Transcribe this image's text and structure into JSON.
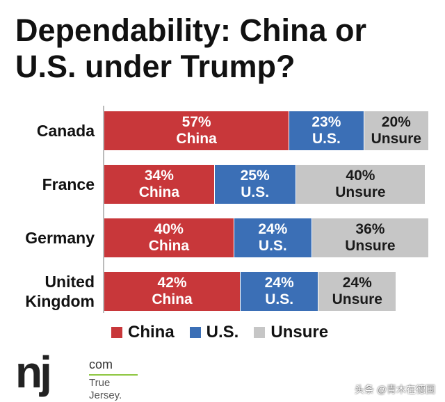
{
  "chart_data": {
    "type": "stacked-bar",
    "orientation": "horizontal",
    "title": "Dependability: China or U.S. under Trump?",
    "categories": [
      "Canada",
      "France",
      "Germany",
      "United Kingdom"
    ],
    "xlim": [
      0,
      100
    ],
    "series": [
      {
        "name": "China",
        "color": "#c8373a",
        "label_color": "#ffffff",
        "values": [
          57,
          34,
          40,
          42
        ],
        "value_labels": [
          "57%",
          "34%",
          "40%",
          "42%"
        ]
      },
      {
        "name": "U.S.",
        "color": "#3b6fb6",
        "label_color": "#ffffff",
        "values": [
          23,
          25,
          24,
          24
        ],
        "value_labels": [
          "23%",
          "25%",
          "24%",
          "24%"
        ]
      },
      {
        "name": "Unsure",
        "color": "#c6c6c6",
        "label_color": "#1a1a1a",
        "values": [
          20,
          40,
          36,
          24
        ],
        "value_labels": [
          "20%",
          "40%",
          "36%",
          "24%"
        ]
      }
    ],
    "legend": "bottom"
  },
  "logo": {
    "mark": "nj",
    "domain": "com",
    "tagline": "True Jersey."
  },
  "watermark": "头条 @青木在德国"
}
